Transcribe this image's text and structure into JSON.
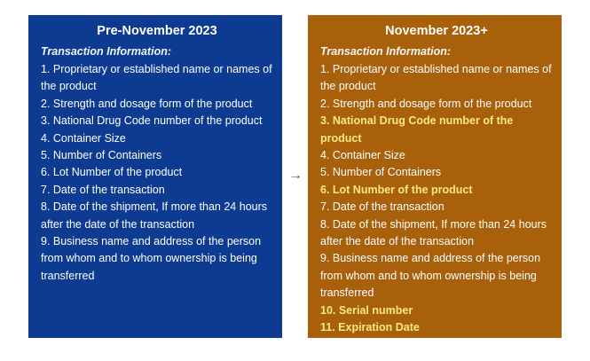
{
  "left": {
    "title": "Pre-November 2023",
    "subtitle": "Transaction Information:",
    "color": "#0d3b92",
    "items": [
      {
        "text": "1. Proprietary or established name or names of the product",
        "highlight": false
      },
      {
        "text": "2. Strength and dosage form of the product",
        "highlight": false
      },
      {
        "text": "3. National Drug Code number of the product",
        "highlight": false
      },
      {
        "text": "4. Container Size",
        "highlight": false
      },
      {
        "text": "5. Number of Containers",
        "highlight": false
      },
      {
        "text": "6. Lot Number of the product",
        "highlight": false
      },
      {
        "text": "7. Date of the transaction",
        "highlight": false
      },
      {
        "text": "8. Date of the shipment, If more than 24 hours after the date of the transaction",
        "highlight": false
      },
      {
        "text": "9. Business name and address of the person from whom and to whom ownership is being transferred",
        "highlight": false
      }
    ]
  },
  "arrow": {
    "icon": "right-arrow-icon",
    "glyph": "→"
  },
  "right": {
    "title": "November 2023+",
    "subtitle": "Transaction Information:",
    "color": "#a8600b",
    "highlight_color": "#f6eb7c",
    "items": [
      {
        "text": "1. Proprietary or established name or names of the product",
        "highlight": false
      },
      {
        "text": "2. Strength and dosage form of the product",
        "highlight": false
      },
      {
        "text": "3. National Drug Code number of the product",
        "highlight": true
      },
      {
        "text": "4. Container Size",
        "highlight": false
      },
      {
        "text": "5. Number of Containers",
        "highlight": false
      },
      {
        "text": "6. Lot Number of the product",
        "highlight": true
      },
      {
        "text": "7. Date of the transaction",
        "highlight": false
      },
      {
        "text": "8. Date of the shipment, If more than 24 hours after the date of the transaction",
        "highlight": false
      },
      {
        "text": "9. Business name and address of the person from whom and to whom ownership is being transferred",
        "highlight": false
      },
      {
        "text": "10. Serial number",
        "highlight": true
      },
      {
        "text": "11. Expiration Date",
        "highlight": true
      }
    ]
  }
}
